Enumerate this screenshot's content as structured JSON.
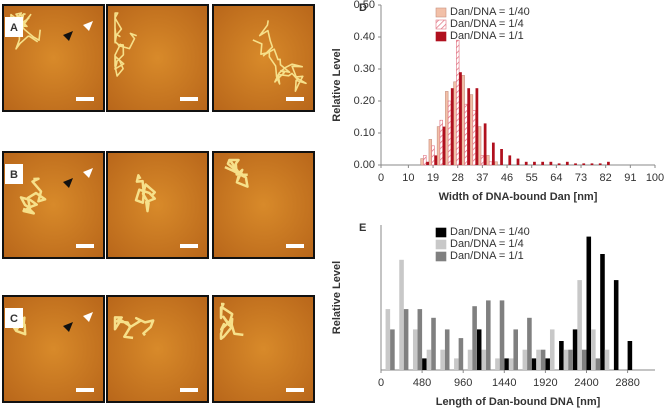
{
  "panels": [
    "A",
    "B",
    "C"
  ],
  "chart_data": [
    {
      "type": "bar",
      "panel": "D",
      "xlabel": "Width of DNA-bound Dan [nm]",
      "ylabel": "Relative Level",
      "categories": [
        16,
        19,
        22,
        25,
        28,
        31,
        34,
        37,
        40,
        43,
        46,
        49,
        52,
        55,
        58,
        61,
        64,
        67,
        70,
        73,
        76,
        79,
        82,
        85
      ],
      "series": [
        {
          "name": "Dan/DNA = 1/40",
          "color": "#f2c0a8",
          "fill": "solid",
          "values": [
            0.02,
            0.08,
            0.12,
            0.23,
            0.26,
            0.28,
            0.22,
            0.12,
            0.03,
            0.01,
            0,
            0,
            0,
            0,
            0,
            0,
            0,
            0,
            0,
            0,
            0,
            0,
            0,
            0
          ]
        },
        {
          "name": "Dan/DNA = 1/4",
          "color": "#e07080",
          "fill": "hatch",
          "values": [
            0.03,
            0.06,
            0.14,
            0.2,
            0.39,
            0.19,
            0.17,
            0.03,
            0.01,
            0,
            0,
            0,
            0,
            0,
            0,
            0,
            0,
            0,
            0,
            0,
            0,
            0,
            0,
            0
          ]
        },
        {
          "name": "Dan/DNA = 1/1",
          "color": "#b0101e",
          "fill": "solid",
          "values": [
            0.01,
            0.03,
            0.12,
            0.24,
            0.29,
            0.24,
            0.24,
            0.13,
            0.07,
            0.05,
            0.03,
            0.02,
            0.01,
            0.01,
            0.01,
            0.01,
            0.005,
            0.01,
            0.005,
            0.005,
            0.005,
            0.005,
            0.01,
            0
          ]
        }
      ],
      "xlim": [
        0,
        100
      ],
      "xticks": [
        0,
        10,
        19,
        28,
        37,
        46,
        55,
        64,
        73,
        82,
        91,
        100
      ],
      "ylim": [
        0,
        0.5
      ],
      "yticks": [
        {
          "value": 0,
          "label": "0.00"
        },
        {
          "value": 0.1,
          "label": "0.10"
        },
        {
          "value": 0.2,
          "label": "0.20"
        },
        {
          "value": 0.3,
          "label": "0.30"
        },
        {
          "value": 0.4,
          "label": "0.40"
        },
        {
          "value": 0.5,
          "label": "0.50"
        }
      ],
      "legend": "upper center"
    },
    {
      "type": "bar",
      "panel": "E",
      "xlabel": "Length of Dan-bound DNA [nm]",
      "ylabel": "Relative Level",
      "categories": [
        80,
        240,
        400,
        560,
        720,
        880,
        1040,
        1200,
        1360,
        1520,
        1680,
        1840,
        2000,
        2160,
        2320,
        2480,
        2640,
        2800,
        2960
      ],
      "series": [
        {
          "name": "Dan/DNA = 1/40",
          "color": "#000000",
          "fill": "solid",
          "values": [
            0,
            0,
            0,
            0.02,
            0,
            0,
            0,
            0.07,
            0,
            0.02,
            0,
            0.02,
            0.02,
            0.05,
            0.07,
            0.23,
            0.2,
            0.155,
            0.05
          ]
        },
        {
          "name": "Dan/DNA = 1/4",
          "color": "#c8c8c8",
          "fill": "solid",
          "values": [
            0.105,
            0.19,
            0.07,
            0.035,
            0.035,
            0.02,
            0.035,
            0.035,
            0.02,
            0.02,
            0.035,
            0.035,
            0.07,
            0.035,
            0.155,
            0.07,
            0.035,
            0,
            0
          ]
        },
        {
          "name": "Dan/DNA = 1/1",
          "color": "#808080",
          "fill": "solid",
          "values": [
            0.07,
            0.105,
            0.105,
            0.09,
            0.07,
            0.055,
            0.11,
            0.12,
            0.12,
            0.07,
            0.09,
            0.035,
            0,
            0.035,
            0.035,
            0.02,
            0,
            0,
            0
          ]
        }
      ],
      "xlim": [
        0,
        3200
      ],
      "xticks": [
        0,
        480,
        960,
        1440,
        1920,
        2400,
        2880
      ],
      "ylim": [
        0,
        0.25
      ],
      "legend": "upper center"
    }
  ]
}
